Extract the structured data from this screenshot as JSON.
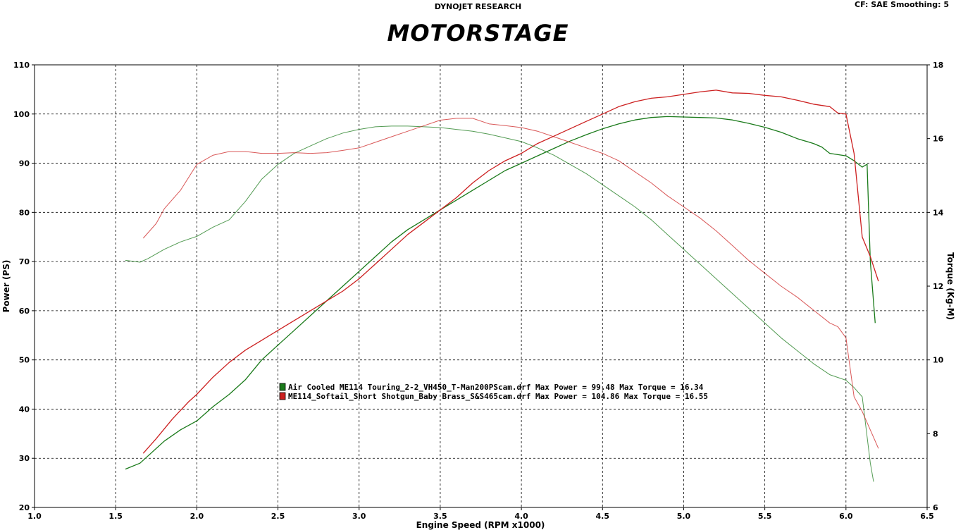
{
  "header": {
    "source": "DYNOJET RESEARCH",
    "correction": "CF: SAE  Smoothing: 5",
    "brand": "MOTORSTAGE"
  },
  "chart_data": {
    "type": "line",
    "xlabel": "Engine Speed (RPM x1000)",
    "ylabel_left": "Power (PS)",
    "ylabel_right": "Torque (Kg-M)",
    "xlim": [
      1.0,
      6.5
    ],
    "ylim_left": [
      20,
      110
    ],
    "ylim_right": [
      6,
      18
    ],
    "x_ticks": [
      "1.0",
      "1.5",
      "2.0",
      "2.5",
      "3.0",
      "3.5",
      "4.0",
      "4.5",
      "5.0",
      "5.5",
      "6.0",
      "6.5"
    ],
    "y_ticks_left": [
      "20",
      "30",
      "40",
      "50",
      "60",
      "70",
      "80",
      "90",
      "100",
      "110"
    ],
    "y_ticks_right": [
      "6",
      "8",
      "10",
      "12",
      "14",
      "16",
      "18"
    ],
    "grid": true,
    "legend": [
      {
        "label": "Air Cooled ME114 Touring_2-2_VH450_T-Man200PScam.drf Max Power = 99.48     Max Torque = 16.34",
        "color": "#1a7a1a"
      },
      {
        "label": "ME114_Softail_Short Shotgun_Baby Brass_S&S465cam.drf Max Power = 104.86     Max Torque = 16.55",
        "color": "#cc2020"
      }
    ],
    "series": [
      {
        "name": "Air Cooled ME114 Touring_2-2_VH450_T-Man200PScam.drf",
        "quantity": "power",
        "axis": "left",
        "color": "#1a7a1a",
        "x": [
          1.56,
          1.65,
          1.7,
          1.8,
          1.9,
          2.0,
          2.1,
          2.2,
          2.3,
          2.4,
          2.5,
          2.6,
          2.7,
          2.8,
          2.9,
          3.0,
          3.1,
          3.2,
          3.3,
          3.4,
          3.5,
          3.6,
          3.7,
          3.8,
          3.9,
          4.0,
          4.1,
          4.2,
          4.3,
          4.4,
          4.5,
          4.6,
          4.7,
          4.8,
          4.9,
          5.0,
          5.1,
          5.2,
          5.3,
          5.4,
          5.5,
          5.6,
          5.7,
          5.8,
          5.85,
          5.9,
          6.0,
          6.05,
          6.1,
          6.13,
          6.15,
          6.18
        ],
        "y": [
          27.8,
          29,
          30.5,
          33.5,
          35.8,
          37.6,
          40.5,
          43,
          46,
          50,
          53,
          56,
          59,
          62,
          65,
          68,
          71,
          74,
          76.5,
          78.5,
          80.5,
          82.5,
          84.5,
          86.5,
          88.5,
          90,
          91.5,
          93,
          94.5,
          95.8,
          97,
          98,
          98.8,
          99.3,
          99.48,
          99.4,
          99.3,
          99.2,
          98.8,
          98.1,
          97.3,
          96.3,
          95,
          94,
          93.3,
          92,
          91.5,
          90.5,
          89.2,
          89.8,
          70,
          57.5
        ]
      },
      {
        "name": "ME114_Softail_Short Shotgun_Baby Brass_S&S465cam.drf",
        "quantity": "power",
        "axis": "left",
        "color": "#cc2020",
        "x": [
          1.67,
          1.75,
          1.85,
          1.95,
          2.0,
          2.1,
          2.2,
          2.3,
          2.4,
          2.5,
          2.6,
          2.7,
          2.8,
          2.9,
          3.0,
          3.1,
          3.2,
          3.3,
          3.4,
          3.5,
          3.6,
          3.7,
          3.8,
          3.9,
          4.0,
          4.1,
          4.2,
          4.3,
          4.4,
          4.5,
          4.6,
          4.7,
          4.8,
          4.9,
          5.0,
          5.1,
          5.2,
          5.3,
          5.4,
          5.5,
          5.6,
          5.7,
          5.8,
          5.9,
          5.95,
          6.0,
          6.05,
          6.1,
          6.15,
          6.2
        ],
        "y": [
          31,
          34,
          38,
          41.5,
          43,
          46.5,
          49.5,
          52,
          54,
          56,
          58,
          60,
          62,
          64,
          66.5,
          69.5,
          72.5,
          75.5,
          78,
          80.5,
          83,
          86,
          88.5,
          90.5,
          92,
          94,
          95.5,
          97,
          98.5,
          100,
          101.5,
          102.5,
          103.2,
          103.5,
          104,
          104.5,
          104.86,
          104.3,
          104.2,
          103.8,
          103.5,
          102.8,
          102,
          101.5,
          100.2,
          100,
          92,
          75,
          71,
          66
        ]
      },
      {
        "name": "Air Cooled ME114 Touring_2-2_VH450_T-Man200PScam.drf",
        "quantity": "torque",
        "axis": "right",
        "color": "#1a7a1a",
        "x": [
          1.56,
          1.65,
          1.7,
          1.8,
          1.9,
          2.0,
          2.1,
          2.2,
          2.3,
          2.4,
          2.5,
          2.6,
          2.7,
          2.8,
          2.9,
          3.0,
          3.1,
          3.2,
          3.3,
          3.4,
          3.5,
          3.6,
          3.7,
          3.8,
          3.9,
          4.0,
          4.1,
          4.2,
          4.3,
          4.4,
          4.5,
          4.6,
          4.7,
          4.8,
          4.9,
          5.0,
          5.1,
          5.2,
          5.3,
          5.4,
          5.5,
          5.6,
          5.7,
          5.8,
          5.9,
          6.0,
          6.05,
          6.1,
          6.15,
          6.17
        ],
        "y": [
          12.7,
          12.65,
          12.75,
          13.0,
          13.2,
          13.35,
          13.6,
          13.8,
          14.3,
          14.9,
          15.3,
          15.6,
          15.8,
          16.0,
          16.15,
          16.25,
          16.32,
          16.34,
          16.34,
          16.32,
          16.3,
          16.25,
          16.2,
          16.12,
          16.02,
          15.92,
          15.75,
          15.55,
          15.3,
          15.05,
          14.75,
          14.45,
          14.15,
          13.8,
          13.4,
          13.0,
          12.6,
          12.2,
          11.8,
          11.4,
          11.0,
          10.6,
          10.25,
          9.9,
          9.6,
          9.45,
          9.25,
          9.0,
          7.2,
          6.7
        ]
      },
      {
        "name": "ME114_Softail_Short Shotgun_Baby Brass_S&S465cam.drf",
        "quantity": "torque",
        "axis": "right",
        "color": "#cc2020",
        "x": [
          1.67,
          1.75,
          1.8,
          1.9,
          2.0,
          2.1,
          2.2,
          2.3,
          2.4,
          2.5,
          2.6,
          2.7,
          2.8,
          2.9,
          3.0,
          3.1,
          3.2,
          3.3,
          3.4,
          3.5,
          3.6,
          3.7,
          3.8,
          3.9,
          4.0,
          4.1,
          4.2,
          4.3,
          4.4,
          4.5,
          4.6,
          4.7,
          4.8,
          4.9,
          5.0,
          5.1,
          5.2,
          5.3,
          5.4,
          5.5,
          5.6,
          5.7,
          5.8,
          5.9,
          5.95,
          6.0,
          6.05,
          6.1,
          6.15,
          6.2
        ],
        "y": [
          13.3,
          13.7,
          14.1,
          14.6,
          15.3,
          15.55,
          15.65,
          15.65,
          15.6,
          15.6,
          15.62,
          15.6,
          15.62,
          15.68,
          15.75,
          15.9,
          16.05,
          16.2,
          16.35,
          16.5,
          16.55,
          16.55,
          16.4,
          16.35,
          16.3,
          16.2,
          16.05,
          15.9,
          15.75,
          15.6,
          15.4,
          15.1,
          14.8,
          14.45,
          14.15,
          13.85,
          13.5,
          13.1,
          12.7,
          12.35,
          12.0,
          11.7,
          11.35,
          11.0,
          10.9,
          10.6,
          9.0,
          8.6,
          8.1,
          7.6
        ]
      }
    ]
  }
}
